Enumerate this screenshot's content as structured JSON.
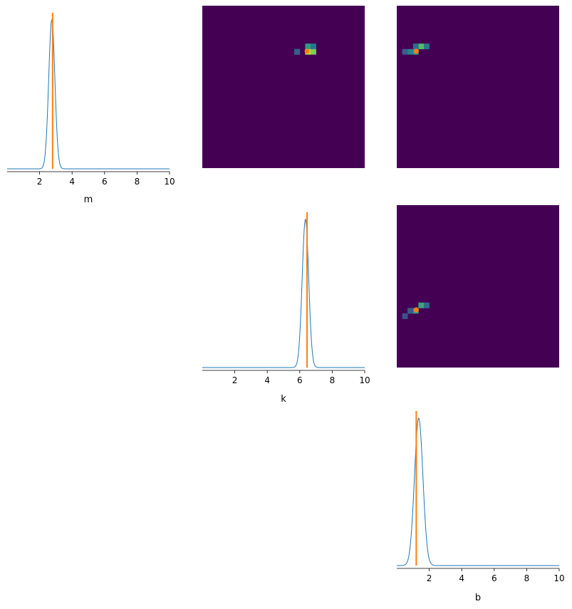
{
  "colors": {
    "posterior": "#1f77b4",
    "truth": "#ff7f0e",
    "heatmap_background": "#440154",
    "colormap": [
      "#440154",
      "#3b528b",
      "#21918c",
      "#5ec962",
      "#fde725"
    ]
  },
  "chart_data": [
    {
      "type": "line",
      "panel": "diag-m",
      "xlabel": "m",
      "ylabel": "",
      "xlim": [
        0,
        10
      ],
      "xticks": [
        "2",
        "4",
        "6",
        "8",
        "10"
      ],
      "peak_x": 2.75,
      "width": 0.19,
      "true_value": 2.8,
      "grid": false
    },
    {
      "type": "line",
      "panel": "diag-k",
      "xlabel": "k",
      "ylabel": "",
      "xlim": [
        0,
        10
      ],
      "xticks": [
        "2",
        "4",
        "6",
        "8",
        "10"
      ],
      "peak_x": 6.35,
      "width": 0.2,
      "true_value": 6.45,
      "grid": false
    },
    {
      "type": "line",
      "panel": "diag-b",
      "xlabel": "b",
      "ylabel": "",
      "xlim": [
        0,
        10
      ],
      "xticks": [
        "2",
        "4",
        "6",
        "8",
        "10"
      ],
      "peak_x": 1.35,
      "width": 0.26,
      "true_value": 1.2,
      "grid": false
    },
    {
      "type": "heatmap",
      "panel": "pair-m-k",
      "x_param": "k",
      "y_param": "m",
      "xlim": [
        0,
        10
      ],
      "ylim": [
        0,
        10
      ],
      "bins": 30,
      "cells": [
        [
          6.35,
          2.85,
          0.9
        ],
        [
          6.7,
          2.95,
          0.8
        ],
        [
          6.0,
          2.7,
          0.5
        ],
        [
          6.35,
          2.45,
          0.55
        ],
        [
          6.7,
          2.6,
          0.4
        ],
        [
          6.0,
          2.95,
          0.3
        ]
      ],
      "true_point": [
        6.45,
        2.8
      ]
    },
    {
      "type": "heatmap",
      "panel": "pair-m-b",
      "x_param": "b",
      "y_param": "m",
      "xlim": [
        0,
        10
      ],
      "ylim": [
        0,
        10
      ],
      "bins": 30,
      "cells": [
        [
          1.2,
          2.8,
          0.55
        ],
        [
          0.85,
          2.8,
          0.45
        ],
        [
          1.55,
          2.6,
          0.7
        ],
        [
          1.9,
          2.6,
          0.4
        ],
        [
          1.2,
          2.45,
          0.35
        ],
        [
          0.5,
          2.8,
          0.3
        ]
      ],
      "true_point": [
        1.2,
        2.8
      ]
    },
    {
      "type": "heatmap",
      "panel": "pair-k-b",
      "x_param": "b",
      "y_param": "k",
      "xlim": [
        0,
        10
      ],
      "ylim": [
        0,
        10
      ],
      "bins": 30,
      "cells": [
        [
          0.5,
          6.8,
          0.25
        ],
        [
          0.85,
          6.6,
          0.4
        ],
        [
          1.2,
          6.45,
          0.55
        ],
        [
          1.55,
          6.1,
          0.6
        ],
        [
          1.9,
          6.1,
          0.35
        ],
        [
          0.85,
          6.45,
          0.3
        ]
      ],
      "true_point": [
        1.2,
        6.45
      ]
    }
  ]
}
